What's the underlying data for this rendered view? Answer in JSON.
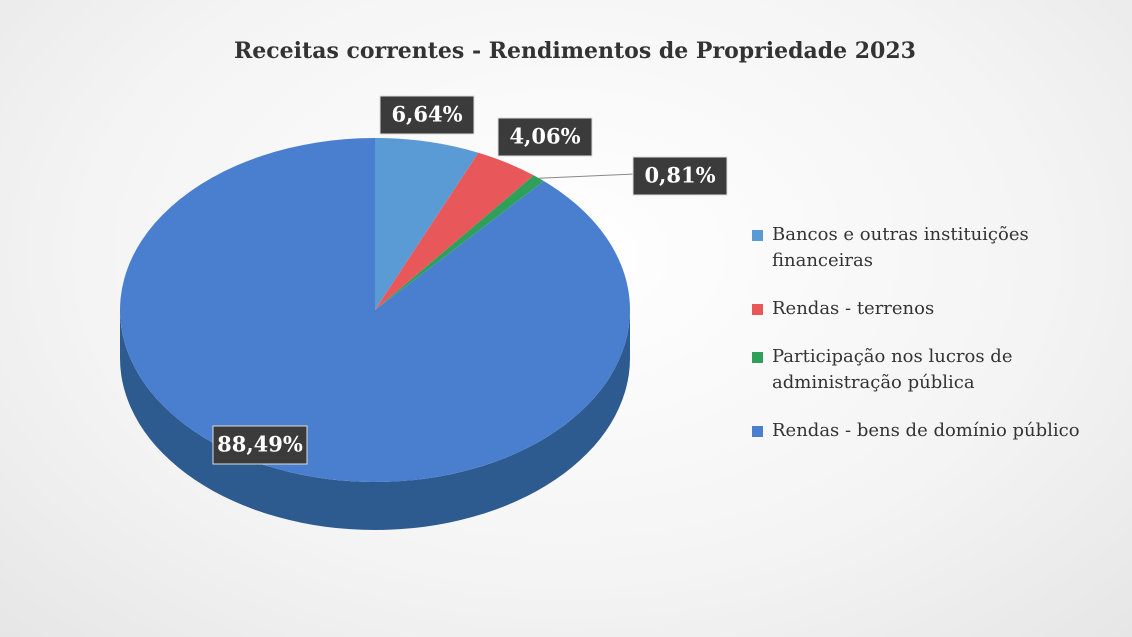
{
  "chart_data": {
    "type": "pie",
    "title": "Receitas correntes  - Rendimentos de Propriedade 2023",
    "categories": [
      "Bancos e outras instituições financeiras",
      "Rendas - terrenos",
      "Participação nos lucros de administração pública",
      "Rendas - bens de domínio público"
    ],
    "values": [
      6.64,
      4.06,
      0.81,
      88.49
    ],
    "value_labels": [
      "6,64%",
      "4,06%",
      "0,81%",
      "88,49%"
    ],
    "colors": [
      "#5b9bd5",
      "#e8585a",
      "#2ea05a",
      "#4a7fd0"
    ],
    "legend": "right"
  }
}
